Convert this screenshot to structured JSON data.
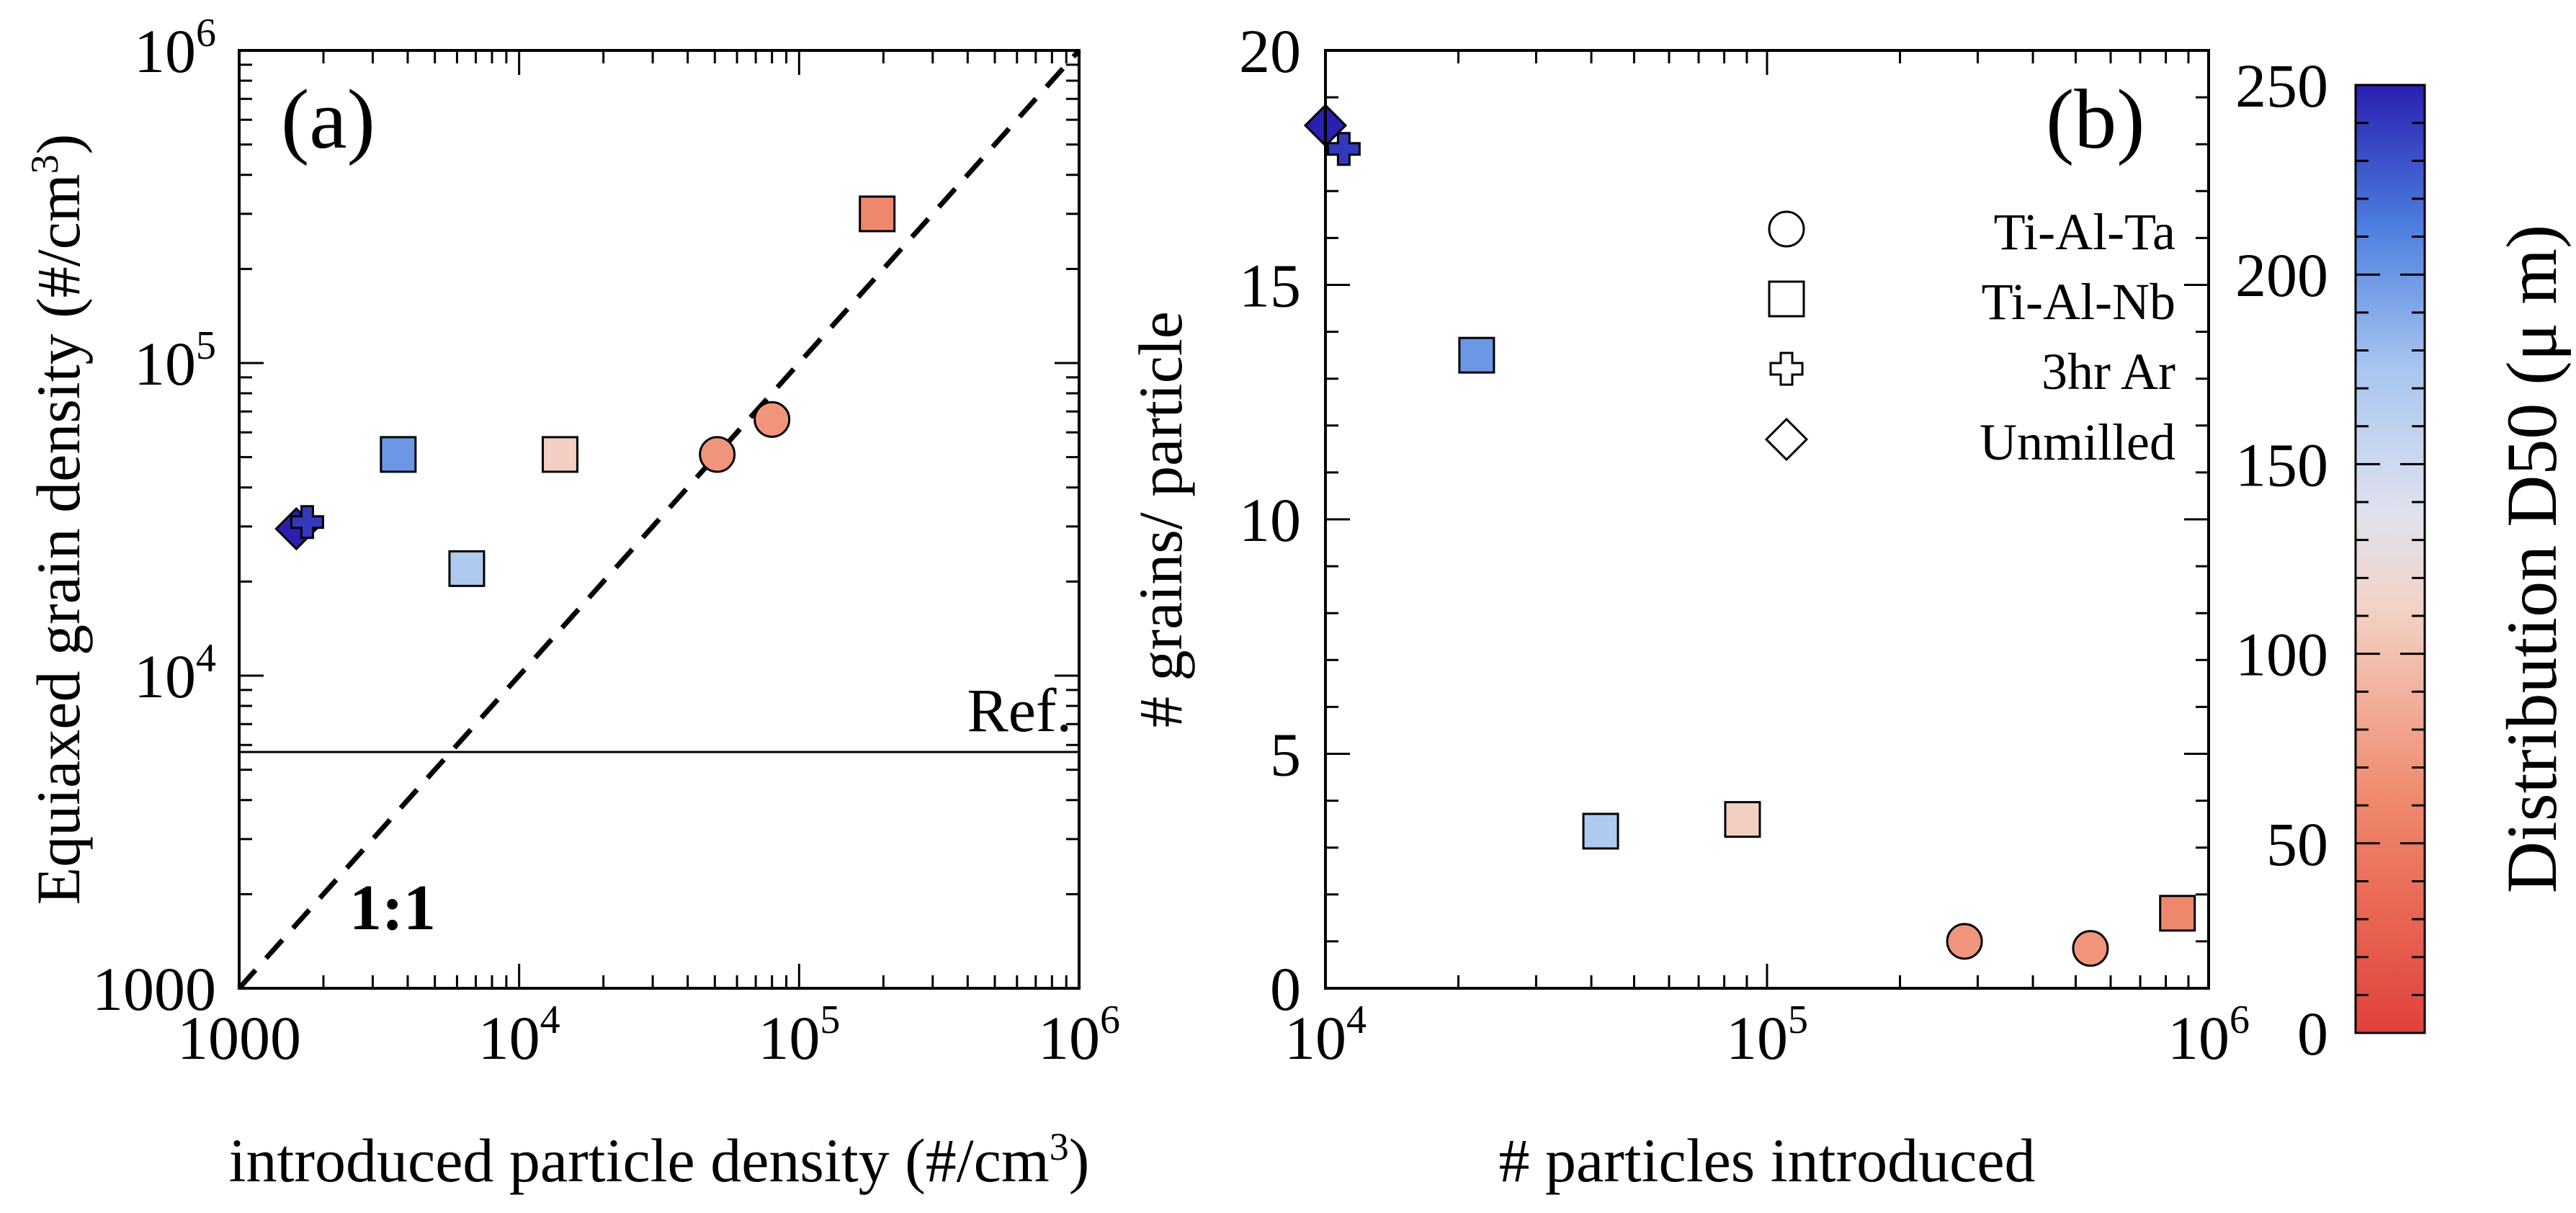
{
  "chart_data": [
    {
      "id": "a",
      "type": "scatter",
      "panel_label": "(a)",
      "xscale": "log",
      "yscale": "log",
      "xlim": [
        1000,
        1000000
      ],
      "ylim": [
        1000,
        1000000
      ],
      "xticks": [
        "1000",
        "10",
        "10",
        "10"
      ],
      "xtick_exps": [
        "",
        "4",
        "5",
        "6"
      ],
      "yticks": [
        "1000",
        "10",
        "10",
        "10"
      ],
      "ytick_exps": [
        "",
        "4",
        "5",
        "6"
      ],
      "xlabel": "introduced particle density (#/cm",
      "xlabel_sup": "3",
      "xlabel_end": ")",
      "ylabel": "Equiaxed grain density (#/cm",
      "ylabel_sup": "3",
      "ylabel_end": ")",
      "reference_line": {
        "label": "Ref.",
        "y": 5700
      },
      "identity_line": {
        "label": "1:1"
      },
      "points": [
        {
          "x": 1600,
          "y": 29500,
          "marker": "diamond",
          "d50": 250
        },
        {
          "x": 1750,
          "y": 31000,
          "marker": "cross",
          "d50": 240
        },
        {
          "x": 3700,
          "y": 51000,
          "marker": "square",
          "d50": 200
        },
        {
          "x": 6500,
          "y": 22000,
          "marker": "square",
          "d50": 170
        },
        {
          "x": 14000,
          "y": 51000,
          "marker": "square",
          "d50": 110
        },
        {
          "x": 51000,
          "y": 51000,
          "marker": "circle",
          "d50": 70
        },
        {
          "x": 80000,
          "y": 66000,
          "marker": "circle",
          "d50": 70
        },
        {
          "x": 190000,
          "y": 300000,
          "marker": "square",
          "d50": 60
        }
      ]
    },
    {
      "id": "b",
      "type": "scatter",
      "panel_label": "(b)",
      "xscale": "log",
      "yscale": "linear",
      "xlim": [
        10000,
        1000000
      ],
      "ylim": [
        0,
        20
      ],
      "xticks": [
        "10",
        "10",
        "10"
      ],
      "xtick_exps": [
        "4",
        "5",
        "6"
      ],
      "yticks": [
        "0",
        "5",
        "10",
        "15",
        "20"
      ],
      "xlabel": "# particles introduced",
      "ylabel": "# grains/ particle",
      "points": [
        {
          "x": 10000,
          "y": 18.4,
          "marker": "diamond",
          "d50": 250
        },
        {
          "x": 11000,
          "y": 17.9,
          "marker": "cross",
          "d50": 240
        },
        {
          "x": 22000,
          "y": 13.5,
          "marker": "square",
          "d50": 200
        },
        {
          "x": 42000,
          "y": 3.35,
          "marker": "square",
          "d50": 170
        },
        {
          "x": 88000,
          "y": 3.6,
          "marker": "square",
          "d50": 110
        },
        {
          "x": 280000,
          "y": 1.0,
          "marker": "circle",
          "d50": 70
        },
        {
          "x": 540000,
          "y": 0.85,
          "marker": "circle",
          "d50": 70
        },
        {
          "x": 850000,
          "y": 1.6,
          "marker": "square",
          "d50": 60
        }
      ]
    }
  ],
  "legend": {
    "items": [
      {
        "marker": "circle",
        "label": "Ti-Al-Ta"
      },
      {
        "marker": "square",
        "label": "Ti-Al-Nb"
      },
      {
        "marker": "cross",
        "label": "3hr Ar"
      },
      {
        "marker": "diamond",
        "label": "Unmilled"
      }
    ]
  },
  "colorbar": {
    "label": "Distribution D50 (μ m)",
    "min": 0,
    "max": 250,
    "ticks": [
      "0",
      "50",
      "100",
      "150",
      "200",
      "250"
    ],
    "colors": {
      "low": "#e0413a",
      "mid": "#efe4e0",
      "high": "#2a1fb0"
    }
  }
}
